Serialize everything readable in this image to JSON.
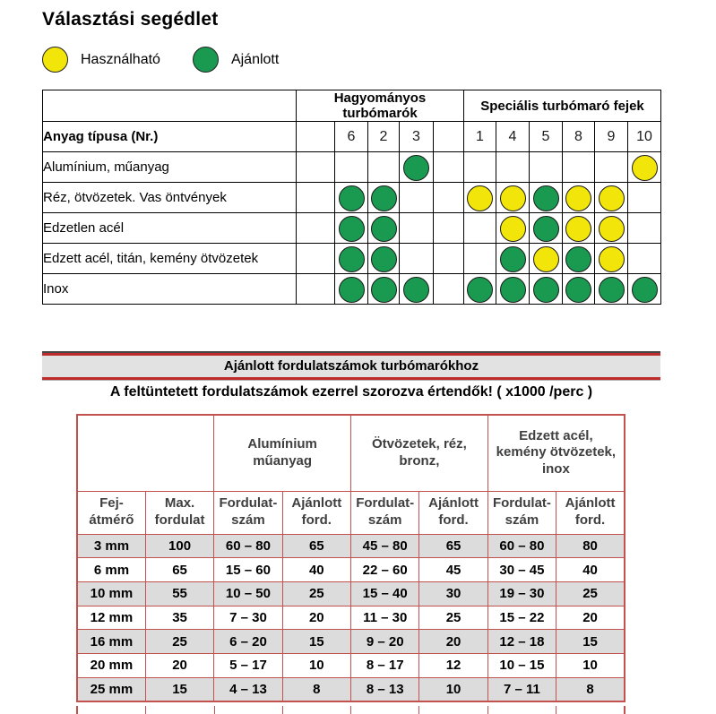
{
  "title": "Választási segédlet",
  "legend": {
    "usable": {
      "label": "Használható",
      "color": "#f2e50a"
    },
    "recommended": {
      "label": "Ajánlott",
      "color": "#199a50"
    }
  },
  "matrix": {
    "group1": "Hagyományos turbómarók",
    "group2": "Speciális turbómaró fejek",
    "row_header": "Anyag típusa (Nr.)",
    "columns": [
      "",
      "6",
      "2",
      "3",
      "",
      "1",
      "4",
      "5",
      "8",
      "9",
      "10"
    ],
    "rows": [
      {
        "label": "Alumínium, műanyag",
        "cells": [
          "",
          "",
          "",
          "G",
          "",
          "",
          "",
          "",
          "",
          "",
          "Y"
        ]
      },
      {
        "label": "Réz, ötvözetek. Vas öntvények",
        "cells": [
          "",
          "G",
          "G",
          "",
          "",
          "Y",
          "Y",
          "G",
          "Y",
          "Y",
          ""
        ]
      },
      {
        "label": "Edzetlen acél",
        "cells": [
          "",
          "G",
          "G",
          "",
          "",
          "",
          "Y",
          "G",
          "Y",
          "Y",
          ""
        ]
      },
      {
        "label": "Edzett acél, titán, kemény ötvözetek",
        "cells": [
          "",
          "G",
          "G",
          "",
          "",
          "",
          "G",
          "Y",
          "G",
          "Y",
          ""
        ]
      },
      {
        "label": "Inox",
        "cells": [
          "",
          "G",
          "G",
          "G",
          "",
          "G",
          "G",
          "G",
          "G",
          "G",
          "G"
        ]
      }
    ]
  },
  "speed_table": {
    "banner": "Ajánlott fordulatszámok turbómarókhoz",
    "note": "A feltüntetett fordulatszámok ezerrel szorozva értendők! ( x1000 /perc )",
    "col_groups": [
      "Alumínium\nműanyag",
      "Ötvözetek, réz,\nbronz,",
      "Edzett acél,\nkemény ötvözetek,\ninox"
    ],
    "headers": [
      "Fej-\nátmérő",
      "Max.\nfordulat",
      "Fordulat-\nszám",
      "Ajánlott\nford.",
      "Fordulat-\nszám",
      "Ajánlott\nford.",
      "Fordulat-\nszám",
      "Ajánlott\nford."
    ],
    "rows": [
      [
        "3 mm",
        "100",
        "60 – 80",
        "65",
        "45 – 80",
        "65",
        "60 – 80",
        "80"
      ],
      [
        "6 mm",
        "65",
        "15 – 60",
        "40",
        "22 – 60",
        "45",
        "30 – 45",
        "40"
      ],
      [
        "10 mm",
        "55",
        "10 – 50",
        "25",
        "15 –  40",
        "30",
        "19 – 30",
        "25"
      ],
      [
        "12 mm",
        "35",
        "7 – 30",
        "20",
        "11 – 30",
        "25",
        "15 – 22",
        "20"
      ],
      [
        "16 mm",
        "25",
        "6 – 20",
        "15",
        "9 – 20",
        "20",
        "12 – 18",
        "15"
      ],
      [
        "20 mm",
        "20",
        "5 – 17",
        "10",
        "8 – 17",
        "12",
        "10 – 15",
        "10"
      ],
      [
        "25 mm",
        "15",
        "4 – 13",
        "8",
        "8 – 13",
        "10",
        "7 – 11",
        "8"
      ]
    ]
  }
}
